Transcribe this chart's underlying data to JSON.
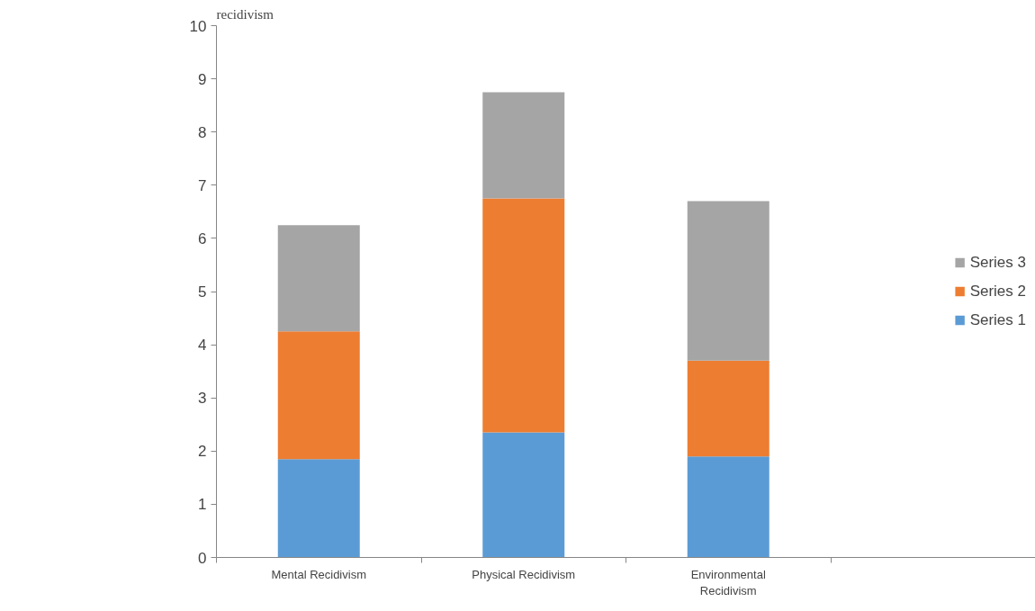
{
  "chart_data": {
    "type": "bar",
    "title": "recidivism",
    "stacked": true,
    "categories": [
      "Mental Recidivism",
      "Physical Recidivism",
      "Environmental Recidivism",
      null
    ],
    "series": [
      {
        "name": "Series 1",
        "color": "#5b9bd5",
        "values": [
          1.85,
          2.35,
          1.9,
          null
        ]
      },
      {
        "name": "Series 2",
        "color": "#ed7d31",
        "values": [
          2.4,
          4.4,
          1.8,
          null
        ]
      },
      {
        "name": "Series 3",
        "color": "#a5a5a5",
        "values": [
          2.0,
          2.0,
          3.0,
          null
        ]
      }
    ],
    "ylim": [
      0,
      10
    ],
    "yticks": [
      0,
      1,
      2,
      3,
      4,
      5,
      6,
      7,
      8,
      9,
      10
    ],
    "grid": false,
    "legend": "right"
  }
}
